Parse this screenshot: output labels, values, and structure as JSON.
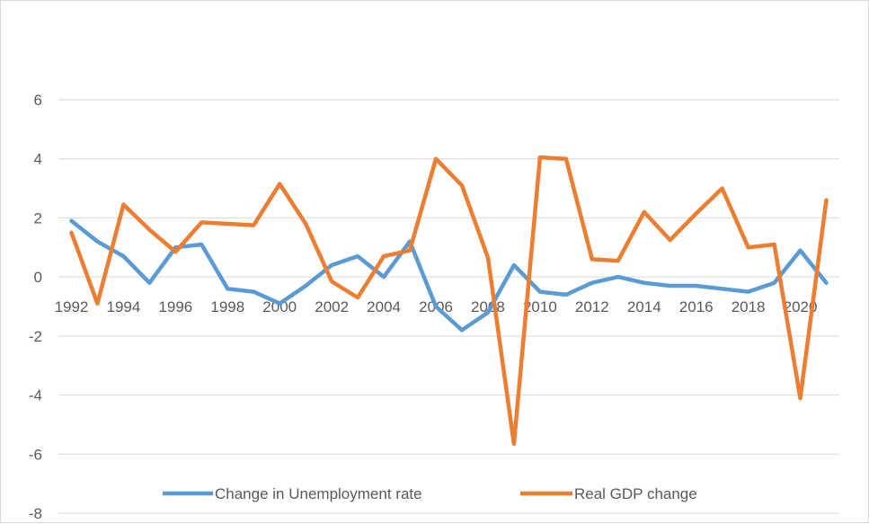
{
  "chart_data": {
    "type": "line",
    "title": "",
    "xlabel": "",
    "ylabel": "",
    "ylim": [
      -8,
      6
    ],
    "y_ticks": [
      "6",
      "4",
      "2",
      "0",
      "-2",
      "-4",
      "-6",
      "-8"
    ],
    "x_tick_labels": [
      "1992",
      "1994",
      "1996",
      "1998",
      "2000",
      "2002",
      "2004",
      "2006",
      "2008",
      "2010",
      "2012",
      "2014",
      "2016",
      "2018",
      "2020"
    ],
    "x": [
      1992,
      1993,
      1994,
      1995,
      1996,
      1997,
      1998,
      1999,
      2000,
      2001,
      2002,
      2003,
      2004,
      2005,
      2006,
      2007,
      2008,
      2009,
      2010,
      2011,
      2012,
      2013,
      2014,
      2015,
      2016,
      2017,
      2018,
      2019,
      2020,
      2021
    ],
    "grid": "horizontal",
    "legend_position": "bottom",
    "series": [
      {
        "name": "Change in Unemployment rate",
        "color": "#5B9BD5",
        "values": [
          1.9,
          1.2,
          0.7,
          -0.2,
          1.0,
          1.1,
          -0.4,
          -0.5,
          -0.9,
          -0.3,
          0.4,
          0.7,
          0.0,
          1.2,
          -1.0,
          -1.8,
          -1.2,
          0.4,
          -0.5,
          -0.6,
          -0.2,
          0.0,
          -0.2,
          -0.3,
          -0.3,
          -0.4,
          -0.5,
          -0.2,
          0.9,
          -0.2
        ]
      },
      {
        "name": "Real GDP change",
        "color": "#ED7D31",
        "values": [
          1.5,
          -0.9,
          2.45,
          1.6,
          0.85,
          1.85,
          1.8,
          1.75,
          3.15,
          1.8,
          -0.15,
          -0.7,
          0.7,
          0.9,
          4.0,
          3.1,
          0.65,
          -5.65,
          4.05,
          4.0,
          0.6,
          0.55,
          2.2,
          1.25,
          2.15,
          3.0,
          1.0,
          1.1,
          -4.1,
          2.6
        ]
      }
    ]
  }
}
